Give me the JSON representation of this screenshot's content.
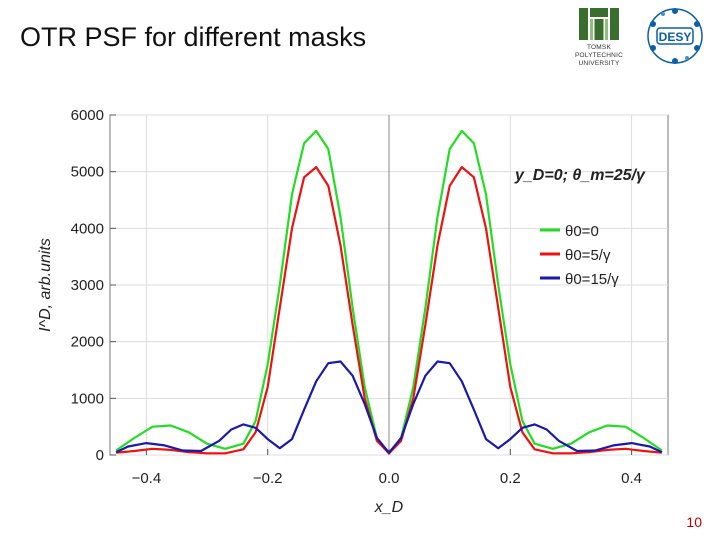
{
  "slide": {
    "title": "OTR PSF for different masks",
    "page_number": "10"
  },
  "logos": {
    "tpu": {
      "line1": "TOMSK",
      "line2": "POLYTECHNIC",
      "line3": "UNIVERSITY",
      "color": "#3a6e2f"
    },
    "desy": {
      "text": "DESY",
      "color": "#0a5fa8"
    }
  },
  "chart_data": {
    "type": "line",
    "ylabel": "I^D, arb.units",
    "xlabel": "x_D",
    "annotation": "y_D=0;  θ_m=25/γ",
    "xlim": [
      -0.46,
      0.46
    ],
    "ylim": [
      0,
      6000
    ],
    "xticks": [
      -0.4,
      -0.2,
      0.0,
      0.2,
      0.4
    ],
    "xtick_labels": [
      "−0.4",
      "−0.2",
      "0.0",
      "0.2",
      "0.4"
    ],
    "yticks": [
      0,
      1000,
      2000,
      3000,
      4000,
      5000,
      6000
    ],
    "ytick_labels": [
      "0",
      "1000",
      "2000",
      "3000",
      "4000",
      "5000",
      "6000"
    ],
    "grid": true,
    "legend_position": "right",
    "series": [
      {
        "name": "θ0=0",
        "color": "#22dd22",
        "points": [
          [
            -0.45,
            80
          ],
          [
            -0.42,
            300
          ],
          [
            -0.39,
            500
          ],
          [
            -0.36,
            520
          ],
          [
            -0.33,
            400
          ],
          [
            -0.3,
            200
          ],
          [
            -0.27,
            110
          ],
          [
            -0.24,
            200
          ],
          [
            -0.22,
            600
          ],
          [
            -0.2,
            1600
          ],
          [
            -0.18,
            3000
          ],
          [
            -0.16,
            4600
          ],
          [
            -0.14,
            5500
          ],
          [
            -0.12,
            5720
          ],
          [
            -0.1,
            5400
          ],
          [
            -0.08,
            4200
          ],
          [
            -0.06,
            2600
          ],
          [
            -0.04,
            1200
          ],
          [
            -0.02,
            300
          ],
          [
            0.0,
            30
          ],
          [
            0.02,
            300
          ],
          [
            0.04,
            1200
          ],
          [
            0.06,
            2600
          ],
          [
            0.08,
            4200
          ],
          [
            0.1,
            5400
          ],
          [
            0.12,
            5720
          ],
          [
            0.14,
            5500
          ],
          [
            0.16,
            4600
          ],
          [
            0.18,
            3000
          ],
          [
            0.2,
            1600
          ],
          [
            0.22,
            600
          ],
          [
            0.24,
            200
          ],
          [
            0.27,
            110
          ],
          [
            0.3,
            200
          ],
          [
            0.33,
            400
          ],
          [
            0.36,
            520
          ],
          [
            0.39,
            500
          ],
          [
            0.42,
            300
          ],
          [
            0.45,
            80
          ]
        ]
      },
      {
        "name": "θ0=5/γ",
        "color": "#ee1111",
        "points": [
          [
            -0.45,
            40
          ],
          [
            -0.42,
            70
          ],
          [
            -0.39,
            110
          ],
          [
            -0.36,
            90
          ],
          [
            -0.33,
            50
          ],
          [
            -0.3,
            30
          ],
          [
            -0.27,
            30
          ],
          [
            -0.24,
            100
          ],
          [
            -0.22,
            400
          ],
          [
            -0.2,
            1200
          ],
          [
            -0.18,
            2600
          ],
          [
            -0.16,
            4000
          ],
          [
            -0.14,
            4900
          ],
          [
            -0.12,
            5080
          ],
          [
            -0.1,
            4750
          ],
          [
            -0.08,
            3700
          ],
          [
            -0.06,
            2300
          ],
          [
            -0.04,
            1000
          ],
          [
            -0.02,
            250
          ],
          [
            0.0,
            30
          ],
          [
            0.02,
            250
          ],
          [
            0.04,
            1000
          ],
          [
            0.06,
            2300
          ],
          [
            0.08,
            3700
          ],
          [
            0.1,
            4750
          ],
          [
            0.12,
            5080
          ],
          [
            0.14,
            4900
          ],
          [
            0.16,
            4000
          ],
          [
            0.18,
            2600
          ],
          [
            0.2,
            1200
          ],
          [
            0.22,
            400
          ],
          [
            0.24,
            100
          ],
          [
            0.27,
            30
          ],
          [
            0.3,
            30
          ],
          [
            0.33,
            50
          ],
          [
            0.36,
            90
          ],
          [
            0.39,
            110
          ],
          [
            0.42,
            70
          ],
          [
            0.45,
            40
          ]
        ]
      },
      {
        "name": "θ0=15/γ",
        "color": "#1a1aaa",
        "points": [
          [
            -0.45,
            50
          ],
          [
            -0.43,
            150
          ],
          [
            -0.4,
            210
          ],
          [
            -0.37,
            170
          ],
          [
            -0.34,
            80
          ],
          [
            -0.31,
            70
          ],
          [
            -0.28,
            250
          ],
          [
            -0.26,
            450
          ],
          [
            -0.24,
            540
          ],
          [
            -0.22,
            480
          ],
          [
            -0.2,
            280
          ],
          [
            -0.18,
            120
          ],
          [
            -0.16,
            280
          ],
          [
            -0.14,
            800
          ],
          [
            -0.12,
            1300
          ],
          [
            -0.1,
            1620
          ],
          [
            -0.08,
            1650
          ],
          [
            -0.06,
            1400
          ],
          [
            -0.04,
            900
          ],
          [
            -0.02,
            300
          ],
          [
            0.0,
            40
          ],
          [
            0.02,
            300
          ],
          [
            0.04,
            900
          ],
          [
            0.06,
            1400
          ],
          [
            0.08,
            1650
          ],
          [
            0.1,
            1620
          ],
          [
            0.12,
            1300
          ],
          [
            0.14,
            800
          ],
          [
            0.16,
            280
          ],
          [
            0.18,
            120
          ],
          [
            0.2,
            280
          ],
          [
            0.22,
            480
          ],
          [
            0.24,
            540
          ],
          [
            0.26,
            450
          ],
          [
            0.28,
            250
          ],
          [
            0.31,
            70
          ],
          [
            0.34,
            80
          ],
          [
            0.37,
            170
          ],
          [
            0.4,
            210
          ],
          [
            0.43,
            150
          ],
          [
            0.45,
            50
          ]
        ]
      }
    ]
  }
}
